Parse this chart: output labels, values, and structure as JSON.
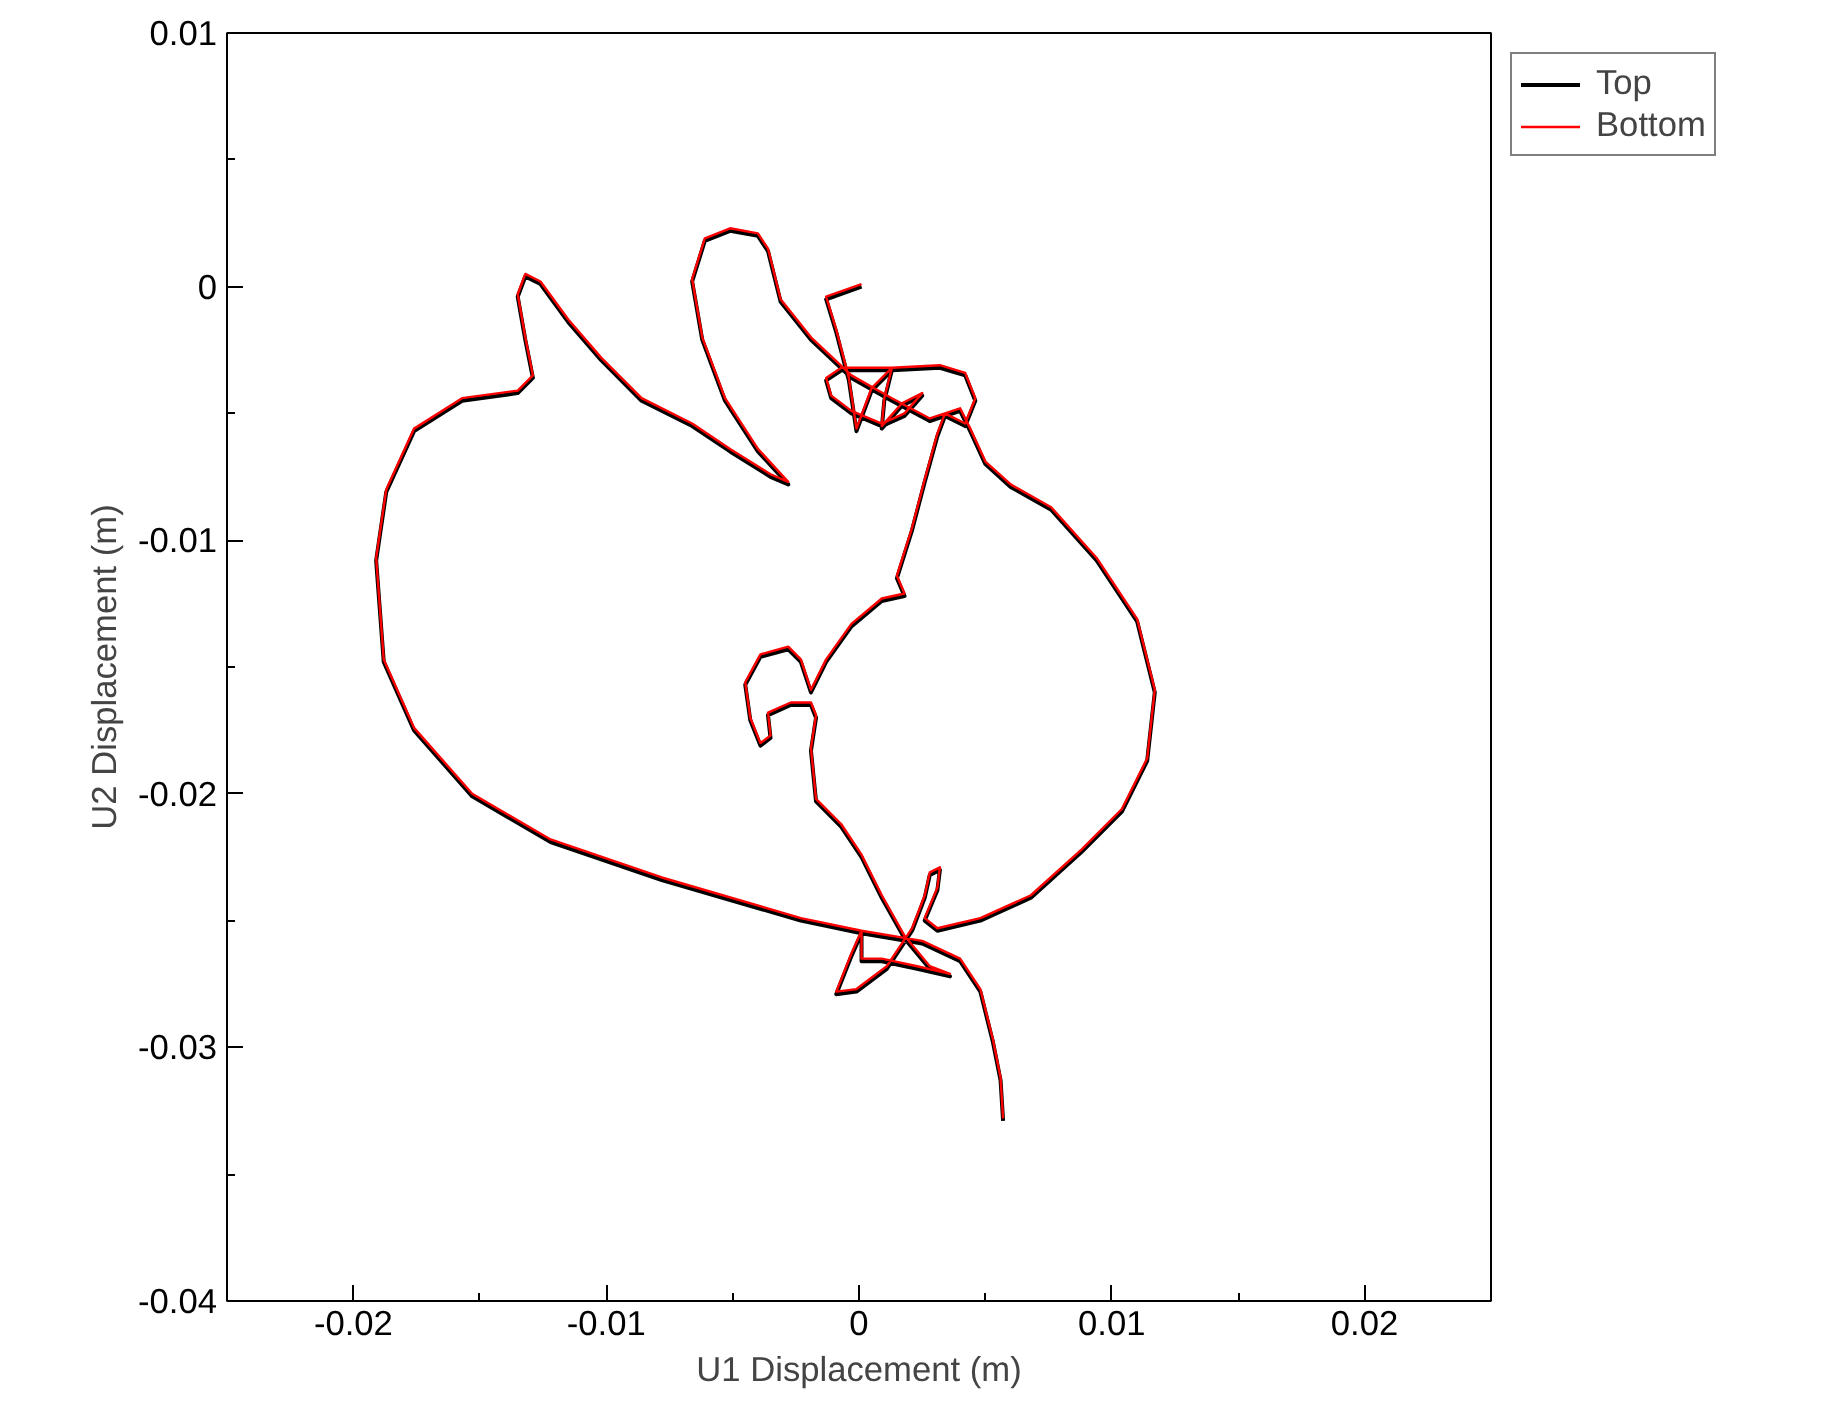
{
  "chart_data": {
    "type": "line",
    "xlabel": "U1 Displacement (m)",
    "ylabel": "U2 Displacement (m)",
    "xlim": [
      -0.025,
      0.025
    ],
    "ylim": [
      -0.04,
      0.01
    ],
    "xticks": [
      {
        "value": -0.025,
        "label": null
      },
      -0.02,
      {
        "value": -0.015,
        "label": null
      },
      -0.01,
      {
        "value": -0.005,
        "label": null
      },
      0,
      {
        "value": 0.005,
        "label": null
      },
      0.01,
      {
        "value": 0.015,
        "label": null
      },
      0.02,
      {
        "value": 0.025,
        "label": null
      }
    ],
    "yticks": [
      -0.04,
      {
        "value": -0.035,
        "label": null
      },
      -0.03,
      {
        "value": -0.025,
        "label": null
      },
      -0.02,
      {
        "value": -0.015,
        "label": null
      },
      -0.01,
      {
        "value": -0.005,
        "label": null
      },
      0,
      {
        "value": 0.005,
        "label": null
      },
      0.01
    ],
    "grid": false,
    "legend": "top right",
    "marker": "none",
    "line_style": "solid",
    "series": [
      {
        "name": "Top",
        "color": "#000000",
        "x": [
          0.0001,
          -0.0013,
          -0.0009,
          -0.0004,
          -0.0001,
          0.0005,
          0.0013,
          0.001,
          0.0009,
          0.0017,
          0.0025,
          0.0018,
          0.0009,
          -0.0003,
          -0.0011,
          -0.0013,
          -0.0007,
          0.0013,
          0.0032,
          0.0042,
          0.0046,
          0.0042,
          0.0034,
          0.0031,
          0.0026,
          0.0021,
          0.0015,
          0.0018,
          0.0009,
          -0.0003,
          -0.0013,
          -0.0019,
          -0.0023,
          -0.0028,
          -0.0039,
          -0.0045,
          -0.0043,
          -0.0039,
          -0.0035,
          -0.0036,
          -0.0027,
          -0.0019,
          -0.0017,
          -0.0019,
          -0.0017,
          -0.0007,
          0.0001,
          0.0009,
          0.0018,
          0.0028,
          0.0036,
          0.0023,
          0.0009,
          0.0001,
          0.0001,
          -0.0003,
          -0.0009,
          -0.0001,
          0.0011,
          0.0021,
          0.0026,
          0.0028,
          0.0032,
          0.0031,
          0.0026,
          0.0031,
          0.0048,
          0.0068,
          0.0088,
          0.0104,
          0.0114,
          0.0117,
          0.011,
          0.0094,
          0.0076,
          0.006,
          0.005,
          0.0044,
          0.004,
          0.0028,
          0.0013,
          -0.0003,
          -0.0019,
          -0.0031,
          -0.0036,
          -0.004,
          -0.0051,
          -0.0061,
          -0.0066,
          -0.0062,
          -0.0053,
          -0.004,
          -0.0028,
          -0.0035,
          -0.0051,
          -0.0066,
          -0.0086,
          -0.0102,
          -0.0115,
          -0.0126,
          -0.0132,
          -0.0135,
          -0.0132,
          -0.0129,
          -0.0135,
          -0.0157,
          -0.0176,
          -0.0187,
          -0.0191,
          -0.0188,
          -0.0176,
          -0.0153,
          -0.0122,
          -0.0078,
          -0.0023,
          0.0001,
          0.0025,
          0.004,
          0.0048,
          0.0053,
          0.0056,
          0.0057
        ],
        "values": [
          0,
          -0.0005,
          -0.0018,
          -0.0037,
          -0.0057,
          -0.0041,
          -0.0033,
          -0.0045,
          -0.0056,
          -0.0047,
          -0.0043,
          -0.0051,
          -0.0055,
          -0.005,
          -0.0044,
          -0.0037,
          -0.0033,
          -0.0033,
          -0.0032,
          -0.0035,
          -0.0045,
          -0.0055,
          -0.0051,
          -0.0059,
          -0.0077,
          -0.0096,
          -0.0115,
          -0.0122,
          -0.0124,
          -0.0134,
          -0.0148,
          -0.016,
          -0.0148,
          -0.0143,
          -0.0146,
          -0.0157,
          -0.0171,
          -0.0181,
          -0.0178,
          -0.0169,
          -0.0165,
          -0.0165,
          -0.017,
          -0.0183,
          -0.0203,
          -0.0213,
          -0.0225,
          -0.0241,
          -0.0257,
          -0.0269,
          -0.0272,
          -0.0269,
          -0.0266,
          -0.0266,
          -0.0255,
          -0.0264,
          -0.0279,
          -0.0278,
          -0.0269,
          -0.0254,
          -0.0241,
          -0.0232,
          -0.023,
          -0.0238,
          -0.025,
          -0.0254,
          -0.025,
          -0.0241,
          -0.0223,
          -0.0207,
          -0.0187,
          -0.016,
          -0.0132,
          -0.0108,
          -0.0088,
          -0.0079,
          -0.007,
          -0.0057,
          -0.0049,
          -0.0053,
          -0.0045,
          -0.0036,
          -0.0021,
          -0.0006,
          0.0014,
          0.002,
          0.0022,
          0.0018,
          0.0002,
          -0.0021,
          -0.0045,
          -0.0065,
          -0.0078,
          -0.0075,
          -0.0065,
          -0.0055,
          -0.0045,
          -0.0029,
          -0.0014,
          0.0001,
          0.0004,
          -0.0004,
          -0.0021,
          -0.0036,
          -0.0042,
          -0.0045,
          -0.0057,
          -0.0081,
          -0.0108,
          -0.0148,
          -0.0175,
          -0.0201,
          -0.0219,
          -0.0234,
          -0.025,
          -0.0255,
          -0.0259,
          -0.0266,
          -0.0278,
          -0.0298,
          -0.0313,
          -0.0329
        ]
      },
      {
        "name": "Bottom",
        "color": "#ff0000",
        "x": [
          0.0001,
          -0.0013,
          -0.0009,
          -0.0004,
          -0.0001,
          0.0005,
          0.0013,
          0.001,
          0.0009,
          0.0017,
          0.0025,
          0.0018,
          0.0009,
          -0.0003,
          -0.0011,
          -0.0013,
          -0.0007,
          0.0013,
          0.0032,
          0.0042,
          0.0046,
          0.0042,
          0.0034,
          0.0031,
          0.0026,
          0.0021,
          0.0015,
          0.0018,
          0.0009,
          -0.0003,
          -0.0013,
          -0.0019,
          -0.0023,
          -0.0028,
          -0.0039,
          -0.0045,
          -0.0043,
          -0.0039,
          -0.0035,
          -0.0036,
          -0.0027,
          -0.0019,
          -0.0017,
          -0.0019,
          -0.0017,
          -0.0007,
          0.0001,
          0.0009,
          0.0018,
          0.0028,
          0.0036,
          0.0023,
          0.0009,
          0.0001,
          0.0001,
          -0.0003,
          -0.0009,
          -0.0001,
          0.0011,
          0.0021,
          0.0026,
          0.0028,
          0.0032,
          0.0031,
          0.0026,
          0.0031,
          0.0048,
          0.0068,
          0.0088,
          0.0104,
          0.0114,
          0.0117,
          0.011,
          0.0094,
          0.0076,
          0.006,
          0.005,
          0.0044,
          0.004,
          0.0028,
          0.0013,
          -0.0003,
          -0.0019,
          -0.0031,
          -0.0036,
          -0.004,
          -0.0051,
          -0.0061,
          -0.0066,
          -0.0062,
          -0.0053,
          -0.004,
          -0.0028,
          -0.0035,
          -0.0051,
          -0.0066,
          -0.0086,
          -0.0102,
          -0.0115,
          -0.0126,
          -0.0132,
          -0.0135,
          -0.0132,
          -0.0129,
          -0.0135,
          -0.0157,
          -0.0176,
          -0.0187,
          -0.0191,
          -0.0188,
          -0.0176,
          -0.0153,
          -0.0122,
          -0.0078,
          -0.0023,
          0.0001,
          0.0025,
          0.004,
          0.0048,
          0.0053,
          0.0056,
          0.0057
        ],
        "values": [
          0.0001,
          -0.0004,
          -0.0017,
          -0.0036,
          -0.0056,
          -0.004,
          -0.0032,
          -0.0044,
          -0.0055,
          -0.0046,
          -0.0042,
          -0.005,
          -0.0054,
          -0.0049,
          -0.0043,
          -0.0036,
          -0.0032,
          -0.0032,
          -0.0031,
          -0.0034,
          -0.0044,
          -0.0054,
          -0.005,
          -0.0058,
          -0.0076,
          -0.0095,
          -0.0114,
          -0.0121,
          -0.0123,
          -0.0133,
          -0.0147,
          -0.0159,
          -0.0147,
          -0.0142,
          -0.0145,
          -0.0156,
          -0.017,
          -0.018,
          -0.0177,
          -0.0168,
          -0.0164,
          -0.0164,
          -0.0169,
          -0.0182,
          -0.0202,
          -0.0212,
          -0.0224,
          -0.024,
          -0.0256,
          -0.0268,
          -0.0271,
          -0.0268,
          -0.0265,
          -0.0265,
          -0.0254,
          -0.0263,
          -0.0278,
          -0.0277,
          -0.0268,
          -0.0253,
          -0.024,
          -0.0231,
          -0.0229,
          -0.0237,
          -0.0249,
          -0.0253,
          -0.0249,
          -0.024,
          -0.0222,
          -0.0206,
          -0.0186,
          -0.0159,
          -0.0131,
          -0.0107,
          -0.0087,
          -0.0078,
          -0.0069,
          -0.0056,
          -0.0048,
          -0.0052,
          -0.0044,
          -0.0035,
          -0.002,
          -0.0005,
          0.0015,
          0.0021,
          0.0023,
          0.0019,
          0.0003,
          -0.002,
          -0.0044,
          -0.0064,
          -0.0077,
          -0.0074,
          -0.0064,
          -0.0054,
          -0.0044,
          -0.0028,
          -0.0013,
          0.0002,
          0.0005,
          -0.0003,
          -0.002,
          -0.0035,
          -0.0041,
          -0.0044,
          -0.0056,
          -0.008,
          -0.0107,
          -0.0147,
          -0.0174,
          -0.02,
          -0.0218,
          -0.0233,
          -0.0249,
          -0.0254,
          -0.0258,
          -0.0265,
          -0.0277,
          -0.0297,
          -0.0312,
          -0.0328
        ]
      }
    ]
  }
}
